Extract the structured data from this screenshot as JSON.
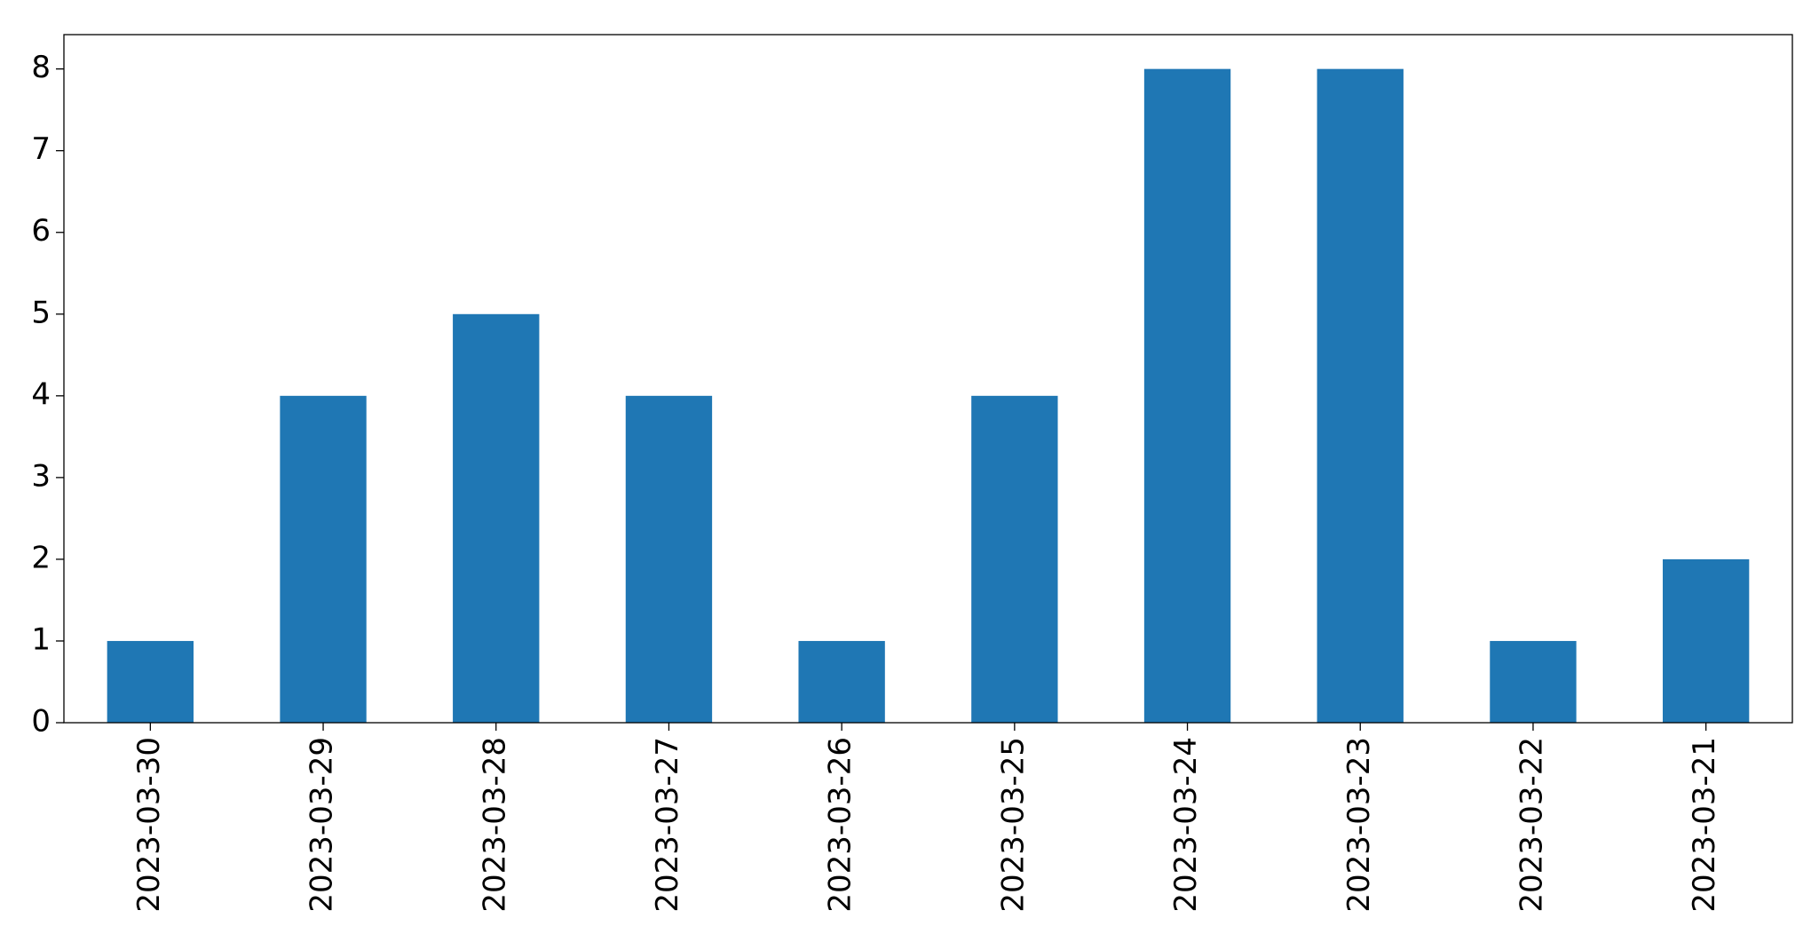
{
  "chart_data": {
    "type": "bar",
    "categories": [
      "2023-03-30",
      "2023-03-29",
      "2023-03-28",
      "2023-03-27",
      "2023-03-26",
      "2023-03-25",
      "2023-03-24",
      "2023-03-23",
      "2023-03-22",
      "2023-03-21"
    ],
    "values": [
      1,
      4,
      5,
      4,
      1,
      4,
      8,
      8,
      1,
      2
    ],
    "color": "#1f77b4",
    "ylim": [
      0,
      8.42
    ],
    "yticks": [
      0,
      1,
      2,
      3,
      4,
      5,
      6,
      7,
      8
    ],
    "grid": false
  }
}
